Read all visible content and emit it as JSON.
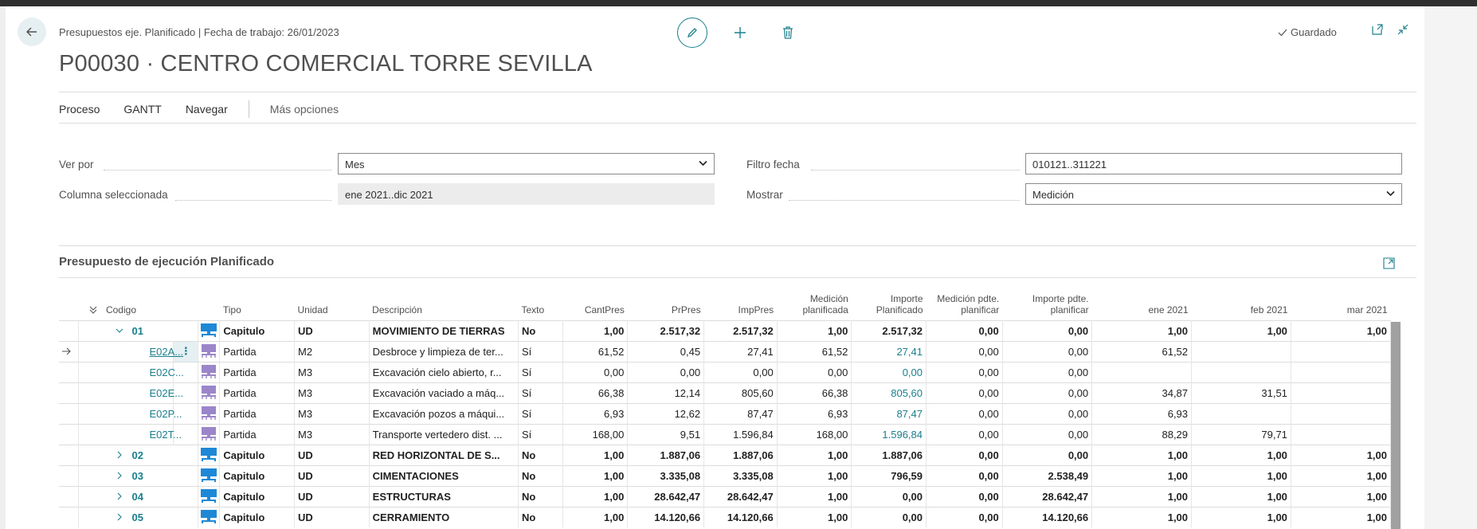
{
  "header": {
    "breadcrumb": "Presupuestos eje. Planificado | Fecha de trabajo: 26/01/2023",
    "title": "P00030 · CENTRO COMERCIAL TORRE SEVILLA",
    "status": "Guardado"
  },
  "actions": {
    "proceso": "Proceso",
    "gantt": "GANTT",
    "navegar": "Navegar",
    "more": "Más opciones"
  },
  "fields": {
    "ver_por_label": "Ver por",
    "ver_por_value": "Mes",
    "columna_label": "Columna seleccionada",
    "columna_value": "ene 2021..dic 2021",
    "filtro_label": "Filtro fecha",
    "filtro_value": "010121..311221",
    "mostrar_label": "Mostrar",
    "mostrar_value": "Medición"
  },
  "section": {
    "title": "Presupuesto de ejecución Planificado"
  },
  "table": {
    "headers": {
      "codigo": "Codigo",
      "tipo": "Tipo",
      "unidad": "Unidad",
      "descripcion": "Descripción",
      "texto": "Texto",
      "cantpres": "CantPres",
      "prpres": "PrPres",
      "imppres": "ImpPres",
      "medicion_line1": "Medición",
      "medicion_line2": "planificada",
      "importe_line1": "Importe",
      "importe_line2": "Planificado",
      "medpdte_line1": "Medición pdte.",
      "medpdte_line2": "planificar",
      "imppdte_line1": "Importe pdte.",
      "imppdte_line2": "planificar",
      "ene": "ene 2021",
      "feb": "feb 2021",
      "mar": "mar 2021"
    },
    "rows": [
      {
        "code": "01",
        "tipo": "Capitulo",
        "unidad": "UD",
        "desc": "MOVIMIENTO DE TIERRAS",
        "texto": "No",
        "cant": "1,00",
        "pr": "2.517,32",
        "imp": "2.517,32",
        "med": "1,00",
        "impplan": "2.517,32",
        "medpdte": "0,00",
        "imppdte": "0,00",
        "ene": "1,00",
        "feb": "1,00",
        "mar": "1,00"
      },
      {
        "code": "E02A...",
        "tipo": "Partida",
        "unidad": "M2",
        "desc": "Desbroce y limpieza de ter...",
        "texto": "Sí",
        "cant": "61,52",
        "pr": "0,45",
        "imp": "27,41",
        "med": "61,52",
        "impplan": "27,41",
        "medpdte": "0,00",
        "imppdte": "0,00",
        "ene": "61,52",
        "feb": "",
        "mar": ""
      },
      {
        "code": "E02C...",
        "tipo": "Partida",
        "unidad": "M3",
        "desc": "Excavación cielo abierto, r...",
        "texto": "Sí",
        "cant": "0,00",
        "pr": "0,00",
        "imp": "0,00",
        "med": "0,00",
        "impplan": "0,00",
        "medpdte": "0,00",
        "imppdte": "0,00",
        "ene": "",
        "feb": "",
        "mar": ""
      },
      {
        "code": "E02E...",
        "tipo": "Partida",
        "unidad": "M3",
        "desc": "Excavación vaciado a máq...",
        "texto": "Sí",
        "cant": "66,38",
        "pr": "12,14",
        "imp": "805,60",
        "med": "66,38",
        "impplan": "805,60",
        "medpdte": "0,00",
        "imppdte": "0,00",
        "ene": "34,87",
        "feb": "31,51",
        "mar": ""
      },
      {
        "code": "E02P...",
        "tipo": "Partida",
        "unidad": "M3",
        "desc": "Excavación pozos a máqui...",
        "texto": "Sí",
        "cant": "6,93",
        "pr": "12,62",
        "imp": "87,47",
        "med": "6,93",
        "impplan": "87,47",
        "medpdte": "0,00",
        "imppdte": "0,00",
        "ene": "6,93",
        "feb": "",
        "mar": ""
      },
      {
        "code": "E02T...",
        "tipo": "Partida",
        "unidad": "M3",
        "desc": "Transporte vertedero dist. ...",
        "texto": "Sí",
        "cant": "168,00",
        "pr": "9,51",
        "imp": "1.596,84",
        "med": "168,00",
        "impplan": "1.596,84",
        "medpdte": "0,00",
        "imppdte": "0,00",
        "ene": "88,29",
        "feb": "79,71",
        "mar": ""
      },
      {
        "code": "02",
        "tipo": "Capitulo",
        "unidad": "UD",
        "desc": "RED HORIZONTAL DE S...",
        "texto": "No",
        "cant": "1,00",
        "pr": "1.887,06",
        "imp": "1.887,06",
        "med": "1,00",
        "impplan": "1.887,06",
        "medpdte": "0,00",
        "imppdte": "0,00",
        "ene": "1,00",
        "feb": "1,00",
        "mar": "1,00"
      },
      {
        "code": "03",
        "tipo": "Capitulo",
        "unidad": "UD",
        "desc": "CIMENTACIONES",
        "texto": "No",
        "cant": "1,00",
        "pr": "3.335,08",
        "imp": "3.335,08",
        "med": "1,00",
        "impplan": "796,59",
        "medpdte": "0,00",
        "imppdte": "2.538,49",
        "ene": "1,00",
        "feb": "1,00",
        "mar": "1,00"
      },
      {
        "code": "04",
        "tipo": "Capitulo",
        "unidad": "UD",
        "desc": "ESTRUCTURAS",
        "texto": "No",
        "cant": "1,00",
        "pr": "28.642,47",
        "imp": "28.642,47",
        "med": "1,00",
        "impplan": "0,00",
        "medpdte": "0,00",
        "imppdte": "28.642,47",
        "ene": "1,00",
        "feb": "1,00",
        "mar": "1,00"
      },
      {
        "code": "05",
        "tipo": "Capitulo",
        "unidad": "UD",
        "desc": "CERRAMIENTO",
        "texto": "No",
        "cant": "1,00",
        "pr": "14.120,66",
        "imp": "14.120,66",
        "med": "1,00",
        "impplan": "0,00",
        "medpdte": "0,00",
        "imppdte": "14.120,66",
        "ene": "1,00",
        "feb": "1,00",
        "mar": "1,00"
      }
    ]
  },
  "colors": {
    "accent": "#1a7f8c",
    "chapter_icon": "#1e88d6",
    "item_icon": "#9b86c9"
  }
}
